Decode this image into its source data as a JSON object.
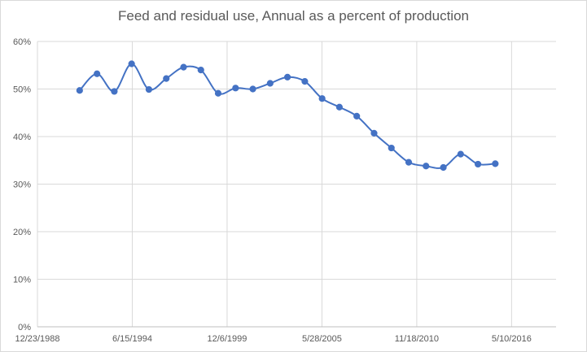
{
  "chart_data": {
    "type": "line",
    "title": "Feed and residual use, Annual as a percent of production",
    "xlabel": "",
    "ylabel": "",
    "x_tick_labels": [
      "12/23/1988",
      "6/15/1994",
      "12/6/1999",
      "5/28/2005",
      "11/18/2010",
      "5/10/2016"
    ],
    "x_tick_dates": [
      "1988-12-23",
      "1994-06-15",
      "1999-12-06",
      "2005-05-28",
      "2010-11-18",
      "2016-05-10"
    ],
    "xlim": [
      "1988-12-23",
      "2018-12-04"
    ],
    "y_tick_labels": [
      "0%",
      "10%",
      "20%",
      "30%",
      "40%",
      "50%",
      "60%"
    ],
    "ylim": [
      0,
      60
    ],
    "grid": true,
    "legend": "none",
    "line_color": "#4472c4",
    "series": [
      {
        "x": [
          "1991-06-01",
          "1992-06-01",
          "1993-06-01",
          "1994-06-01",
          "1995-06-01",
          "1996-06-01",
          "1997-06-01",
          "1998-06-01",
          "1999-06-01",
          "2000-06-01",
          "2001-06-01",
          "2002-06-01",
          "2003-06-01",
          "2004-06-01",
          "2005-06-01",
          "2006-06-01",
          "2007-06-01",
          "2008-06-01",
          "2009-06-01",
          "2010-06-01",
          "2011-06-01",
          "2012-06-01",
          "2013-06-01",
          "2014-06-01",
          "2015-06-01"
        ],
        "values": [
          49.7,
          53.2,
          49.5,
          55.3,
          49.9,
          52.2,
          54.6,
          54.0,
          49.1,
          50.2,
          50.0,
          51.2,
          52.5,
          51.6,
          48.0,
          46.2,
          44.3,
          40.7,
          37.6,
          34.6,
          33.8,
          33.5,
          36.3,
          34.2,
          34.3
        ]
      }
    ]
  }
}
